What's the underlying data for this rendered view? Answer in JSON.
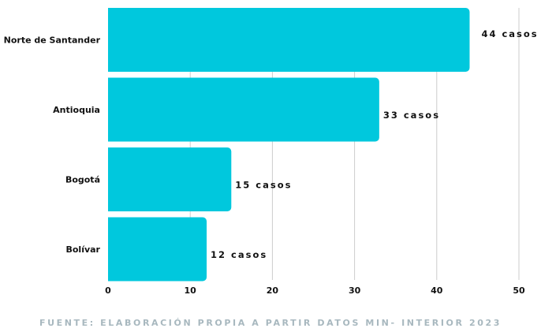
{
  "chart_data": {
    "type": "bar",
    "orientation": "horizontal",
    "categories": [
      "Norte de Santander",
      "Antioquia",
      "Bogotá",
      "Bolívar"
    ],
    "values": [
      44,
      33,
      15,
      12
    ],
    "data_labels": [
      "44 casos",
      "33 casos",
      "15 casos",
      "12 casos"
    ],
    "x_ticks": [
      0,
      10,
      20,
      30,
      40,
      50
    ],
    "xlim": [
      0,
      50
    ],
    "grid": true,
    "bar_color": "#00c8dd",
    "grid_color": "#cccccc",
    "source": "FUENTE: ELABORACIÓN PROPIA A PARTIR DATOS MIN- INTERIOR 2023"
  }
}
